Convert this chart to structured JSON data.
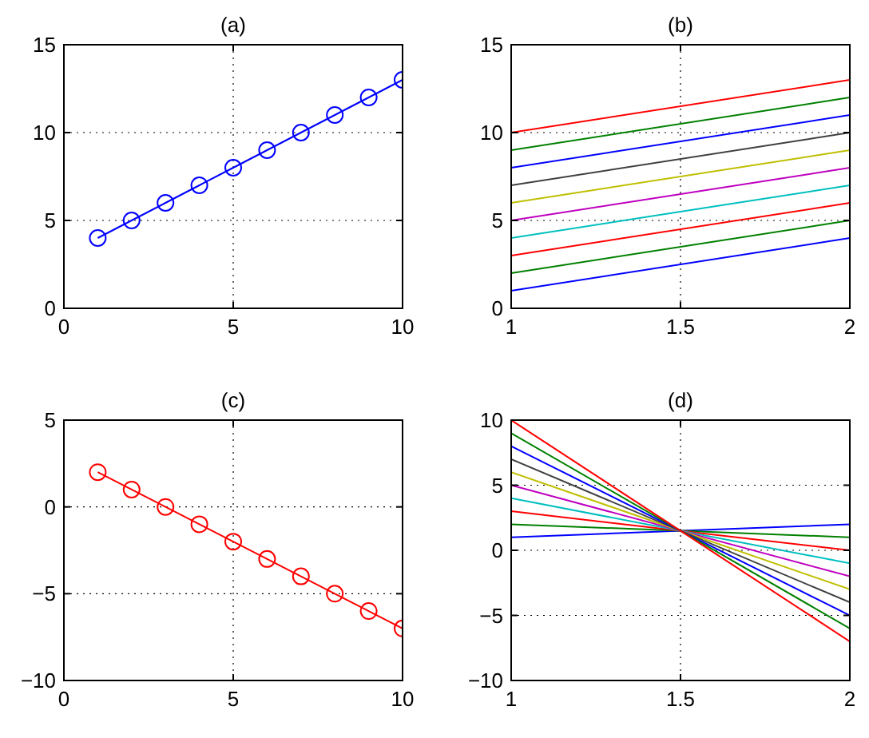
{
  "chart_data": [
    {
      "type": "line",
      "title": "(a)",
      "x": [
        1,
        2,
        3,
        4,
        5,
        6,
        7,
        8,
        9,
        10
      ],
      "marker": "circle",
      "grid": true,
      "xlim": [
        0,
        10
      ],
      "xticks": [
        0,
        5,
        10
      ],
      "ylim": [
        0,
        15
      ],
      "yticks": [
        0,
        5,
        10,
        15
      ],
      "series": [
        {
          "color": "#0000ff",
          "values": [
            4,
            5,
            6,
            7,
            8,
            9,
            10,
            11,
            12,
            13
          ]
        }
      ]
    },
    {
      "type": "line",
      "title": "(b)",
      "x": [
        1,
        2
      ],
      "grid": true,
      "xlim": [
        1,
        2
      ],
      "xticks": [
        1,
        1.5,
        2
      ],
      "ylim": [
        0,
        15
      ],
      "yticks": [
        0,
        5,
        10,
        15
      ],
      "series": [
        {
          "color": "#0000ff",
          "values": [
            1,
            4
          ]
        },
        {
          "color": "#008000",
          "values": [
            2,
            5
          ]
        },
        {
          "color": "#ff0000",
          "values": [
            3,
            6
          ]
        },
        {
          "color": "#00bfbf",
          "values": [
            4,
            7
          ]
        },
        {
          "color": "#bf00bf",
          "values": [
            5,
            8
          ]
        },
        {
          "color": "#bfbf00",
          "values": [
            6,
            9
          ]
        },
        {
          "color": "#404040",
          "values": [
            7,
            10
          ]
        },
        {
          "color": "#0000ff",
          "values": [
            8,
            11
          ]
        },
        {
          "color": "#008000",
          "values": [
            9,
            12
          ]
        },
        {
          "color": "#ff0000",
          "values": [
            10,
            13
          ]
        }
      ]
    },
    {
      "type": "line",
      "title": "(c)",
      "x": [
        1,
        2,
        3,
        4,
        5,
        6,
        7,
        8,
        9,
        10
      ],
      "marker": "circle",
      "grid": true,
      "xlim": [
        0,
        10
      ],
      "xticks": [
        0,
        5,
        10
      ],
      "ylim": [
        -10,
        5
      ],
      "yticks": [
        -10,
        -5,
        0,
        5
      ],
      "series": [
        {
          "color": "#ff0000",
          "values": [
            2,
            1,
            0,
            -1,
            -2,
            -3,
            -4,
            -5,
            -6,
            -7
          ]
        }
      ]
    },
    {
      "type": "line",
      "title": "(d)",
      "x": [
        1,
        2
      ],
      "grid": true,
      "xlim": [
        1,
        2
      ],
      "xticks": [
        1,
        1.5,
        2
      ],
      "ylim": [
        -10,
        10
      ],
      "yticks": [
        -10,
        -5,
        0,
        5,
        10
      ],
      "series": [
        {
          "color": "#0000ff",
          "values": [
            1,
            2
          ]
        },
        {
          "color": "#008000",
          "values": [
            2,
            1
          ]
        },
        {
          "color": "#ff0000",
          "values": [
            3,
            0
          ]
        },
        {
          "color": "#00bfbf",
          "values": [
            4,
            -1
          ]
        },
        {
          "color": "#bf00bf",
          "values": [
            5,
            -2
          ]
        },
        {
          "color": "#bfbf00",
          "values": [
            6,
            -3
          ]
        },
        {
          "color": "#404040",
          "values": [
            7,
            -4
          ]
        },
        {
          "color": "#0000ff",
          "values": [
            8,
            -5
          ]
        },
        {
          "color": "#008000",
          "values": [
            9,
            -6
          ]
        },
        {
          "color": "#ff0000",
          "values": [
            10,
            -7
          ]
        }
      ]
    }
  ]
}
